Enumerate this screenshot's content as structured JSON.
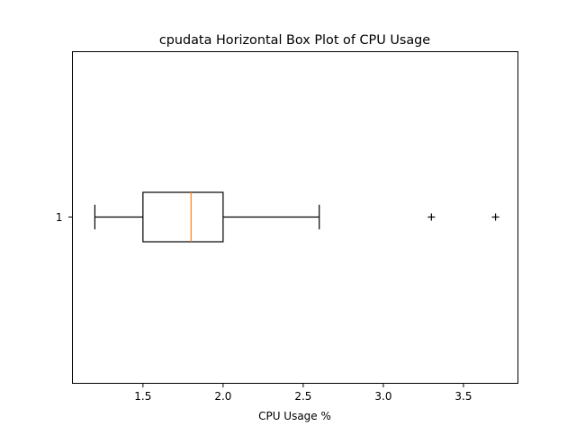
{
  "chart_data": {
    "type": "boxplot",
    "orientation": "horizontal",
    "title": "cpudata Horizontal Box Plot of CPU Usage",
    "xlabel": "CPU Usage %",
    "ylabel": "",
    "xlim": [
      1.06,
      3.84
    ],
    "x_ticks": [
      1.5,
      2.0,
      2.5,
      3.0,
      3.5
    ],
    "x_tick_labels": [
      "1.5",
      "2.0",
      "2.5",
      "3.0",
      "3.5"
    ],
    "y_ticks": [
      1
    ],
    "y_tick_labels": [
      "1"
    ],
    "grid": false,
    "legend": "none",
    "boxes": [
      {
        "position": 1,
        "whisker_low": 1.2,
        "q1": 1.5,
        "median": 1.8,
        "q3": 2.0,
        "whisker_high": 2.6,
        "outliers": [
          3.3,
          3.7
        ]
      }
    ],
    "colors": {
      "box": "#000000",
      "median": "#ff7f0e",
      "whisker": "#000000",
      "outlier": "#000000"
    }
  }
}
